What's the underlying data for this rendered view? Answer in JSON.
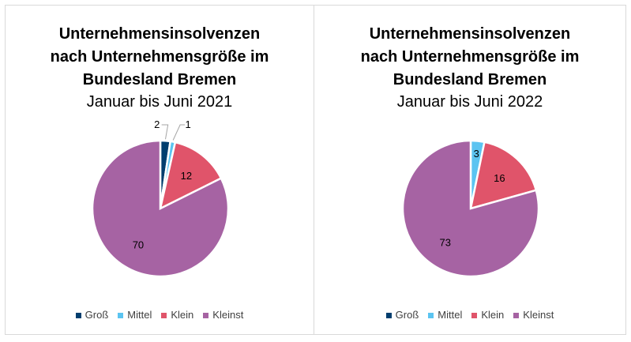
{
  "chart_data": [
    {
      "type": "pie",
      "title": [
        "Unternehmensinsolvenzen",
        "nach Unternehmensgröße im",
        "Bundesland Bremen"
      ],
      "subtitle": "Januar bis Juni 2021",
      "categories": [
        "Groß",
        "Mittel",
        "Klein",
        "Kleinst"
      ],
      "values": [
        2,
        1,
        12,
        70
      ],
      "data_labels": [
        "2",
        "1",
        "12",
        "70"
      ],
      "legend": "bottom"
    },
    {
      "type": "pie",
      "title": [
        "Unternehmensinsolvenzen",
        "nach Unternehmensgröße im",
        "Bundesland Bremen"
      ],
      "subtitle": "Januar bis Juni 2022",
      "categories": [
        "Groß",
        "Mittel",
        "Klein",
        "Kleinst"
      ],
      "values": [
        0,
        3,
        16,
        73
      ],
      "data_labels": [
        "",
        "3",
        "16",
        "73"
      ],
      "legend": "bottom"
    }
  ],
  "colors": [
    "#003e6e",
    "#5bc4f1",
    "#e0546a",
    "#a663a3"
  ]
}
